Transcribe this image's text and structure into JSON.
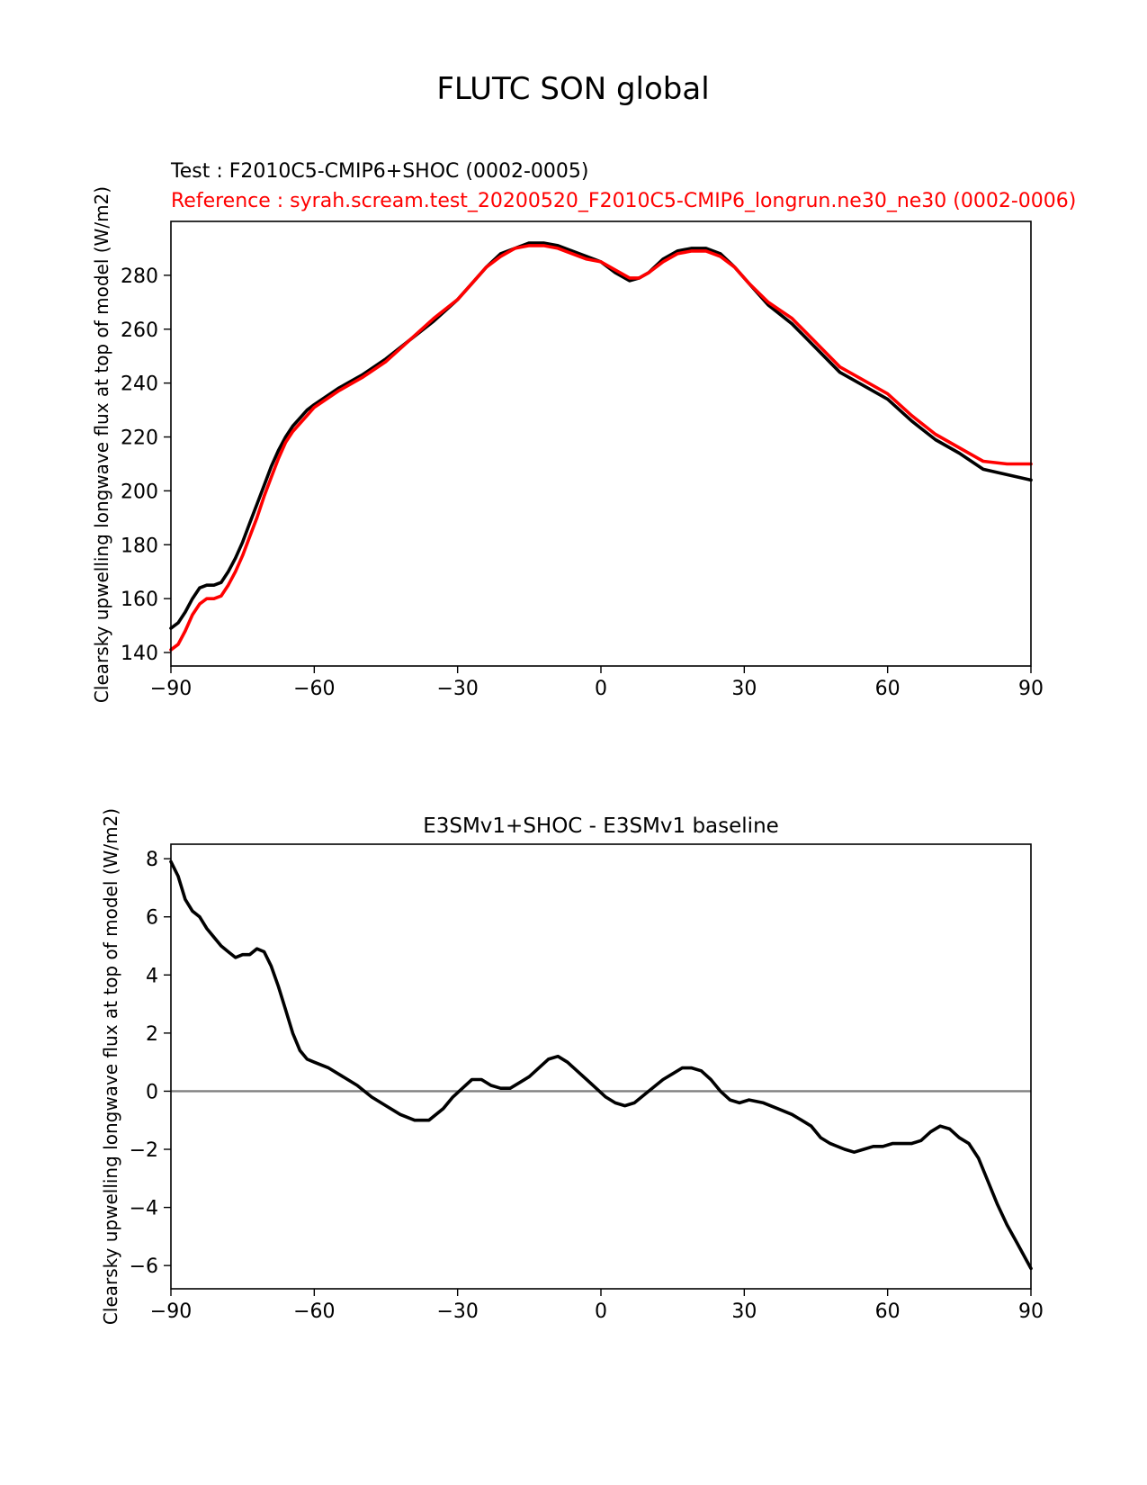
{
  "figure_title": "FLUTC SON global",
  "colors": {
    "test": "#000000",
    "reference": "#ff0000",
    "zero_line": "#808080",
    "axes": "#000000"
  },
  "chart_data": [
    {
      "type": "line",
      "test_label": "Test : F2010C5-CMIP6+SHOC (0002-0005)",
      "reference_label": "Reference : syrah.scream.test_20200520_F2010C5-CMIP6_longrun.ne30_ne30 (0002-0006)",
      "xlabel": "",
      "ylabel": "Clearsky upwelling longwave flux at top of model (W/m2)",
      "xlim": [
        -90,
        90
      ],
      "ylim": [
        135,
        300
      ],
      "xticks": [
        -90,
        -60,
        -30,
        0,
        30,
        60,
        90
      ],
      "xtick_labels": [
        "−90",
        "−60",
        "−30",
        "0",
        "30",
        "60",
        "90"
      ],
      "yticks": [
        140,
        160,
        180,
        200,
        220,
        240,
        260,
        280
      ],
      "ytick_labels": [
        "140",
        "160",
        "180",
        "200",
        "220",
        "240",
        "260",
        "280"
      ],
      "x": [
        -90,
        -88.5,
        -87,
        -85.5,
        -84,
        -82.5,
        -81,
        -79.5,
        -78,
        -76.5,
        -75,
        -73.5,
        -72,
        -70.5,
        -69,
        -67.5,
        -66,
        -64.5,
        -63,
        -61.5,
        -60,
        -55,
        -50,
        -45,
        -40,
        -35,
        -30,
        -27,
        -24,
        -21,
        -18,
        -15,
        -12,
        -9,
        -6,
        -3,
        0,
        3,
        6,
        8,
        10,
        13,
        16,
        19,
        22,
        25,
        28,
        31,
        35,
        40,
        45,
        50,
        55,
        60,
        65,
        70,
        75,
        80,
        85,
        90
      ],
      "series": [
        {
          "name": "Test",
          "values": [
            149,
            151,
            155,
            160,
            164,
            165,
            165,
            166,
            170,
            175,
            181,
            188,
            195,
            202,
            209,
            215,
            220,
            224,
            227,
            230,
            232,
            238,
            243,
            249,
            256,
            263,
            271,
            277,
            283,
            288,
            290,
            292,
            292,
            291,
            289,
            287,
            285,
            281,
            278,
            279,
            281,
            286,
            289,
            290,
            290,
            288,
            283,
            277,
            269,
            262,
            253,
            244,
            239,
            234,
            226,
            219,
            214,
            208,
            206,
            204
          ]
        },
        {
          "name": "Reference",
          "values": [
            141,
            143,
            148,
            154,
            158,
            160,
            160,
            161,
            165,
            170,
            176,
            183,
            190,
            198,
            205,
            212,
            218,
            222,
            225,
            228,
            231,
            237,
            242,
            248,
            256,
            264,
            271,
            277,
            283,
            287,
            290,
            291,
            291,
            290,
            288,
            286,
            285,
            282,
            279,
            279,
            281,
            285,
            288,
            289,
            289,
            287,
            283,
            277,
            270,
            264,
            255,
            246,
            241,
            236,
            228,
            221,
            216,
            211,
            210,
            210
          ]
        }
      ]
    },
    {
      "type": "line",
      "title": "E3SMv1+SHOC - E3SMv1 baseline",
      "xlabel": "",
      "ylabel": "Clearsky upwelling longwave flux at top of model (W/m2)",
      "xlim": [
        -90,
        90
      ],
      "ylim": [
        -6.8,
        8.5
      ],
      "xticks": [
        -90,
        -60,
        -30,
        0,
        30,
        60,
        90
      ],
      "xtick_labels": [
        "−90",
        "−60",
        "−30",
        "0",
        "30",
        "60",
        "90"
      ],
      "yticks": [
        -6,
        -4,
        -2,
        0,
        2,
        4,
        6,
        8
      ],
      "ytick_labels": [
        "−6",
        "−4",
        "−2",
        "0",
        "2",
        "4",
        "6",
        "8"
      ],
      "zero_line": 0,
      "x": [
        -90,
        -88.5,
        -87,
        -85.5,
        -84,
        -82.5,
        -81,
        -79.5,
        -78,
        -76.5,
        -75,
        -73.5,
        -72,
        -70.5,
        -69,
        -67.5,
        -66,
        -64.5,
        -63,
        -61.5,
        -60,
        -57,
        -54,
        -51,
        -48,
        -45,
        -42,
        -39,
        -36,
        -33,
        -31,
        -29,
        -27,
        -25,
        -23,
        -21,
        -19,
        -17,
        -15,
        -13,
        -11,
        -9,
        -7,
        -5,
        -3,
        -1,
        1,
        3,
        5,
        7,
        10,
        13,
        15,
        17,
        19,
        21,
        23,
        25,
        27,
        29,
        31,
        34,
        37,
        40,
        42,
        44,
        46,
        48,
        51,
        53,
        55,
        57,
        59,
        61,
        63,
        65,
        67,
        69,
        71,
        73,
        75,
        77,
        79,
        81,
        83,
        85,
        87,
        90
      ],
      "series": [
        {
          "name": "Difference",
          "values": [
            7.9,
            7.4,
            6.6,
            6.2,
            6.0,
            5.6,
            5.3,
            5.0,
            4.8,
            4.6,
            4.7,
            4.7,
            4.9,
            4.8,
            4.3,
            3.6,
            2.8,
            2.0,
            1.4,
            1.1,
            1.0,
            0.8,
            0.5,
            0.2,
            -0.2,
            -0.5,
            -0.8,
            -1.0,
            -1.0,
            -0.6,
            -0.2,
            0.1,
            0.4,
            0.4,
            0.2,
            0.1,
            0.1,
            0.3,
            0.5,
            0.8,
            1.1,
            1.2,
            1.0,
            0.7,
            0.4,
            0.1,
            -0.2,
            -0.4,
            -0.5,
            -0.4,
            0.0,
            0.4,
            0.6,
            0.8,
            0.8,
            0.7,
            0.4,
            0.0,
            -0.3,
            -0.4,
            -0.3,
            -0.4,
            -0.6,
            -0.8,
            -1.0,
            -1.2,
            -1.6,
            -1.8,
            -2.0,
            -2.1,
            -2.0,
            -1.9,
            -1.9,
            -1.8,
            -1.8,
            -1.8,
            -1.7,
            -1.4,
            -1.2,
            -1.3,
            -1.6,
            -1.8,
            -2.3,
            -3.1,
            -3.9,
            -4.6,
            -5.2,
            -6.1
          ]
        }
      ]
    }
  ]
}
